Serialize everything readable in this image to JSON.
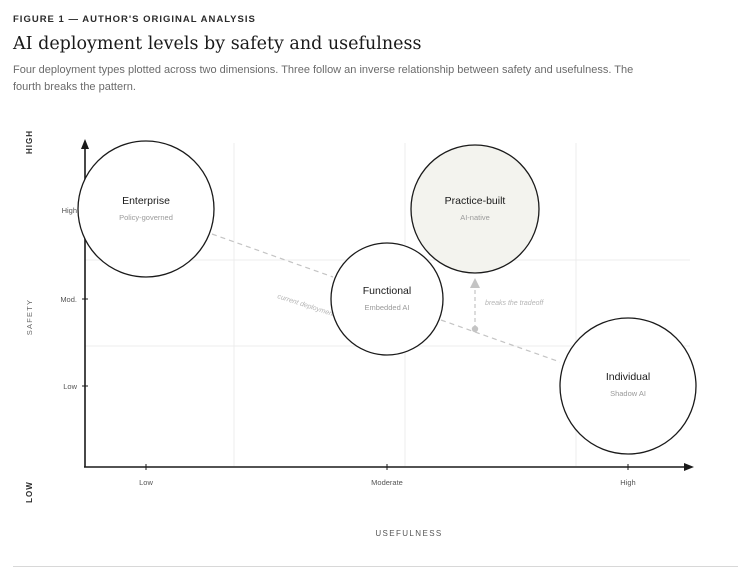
{
  "figure_label": "FIGURE 1 — AUTHOR'S ORIGINAL ANALYSIS",
  "title": "AI deployment levels by safety and usefulness",
  "subtitle": "Four deployment types plotted across two dimensions. Three follow an inverse relationship between safety and usefulness. The fourth breaks the pattern.",
  "axes": {
    "y_title": "SAFETY",
    "y_end_high": "HIGH",
    "y_end_low": "LOW",
    "x_title": "USEFULNESS",
    "y_ticks": [
      "High",
      "Mod.",
      "Low"
    ],
    "x_ticks": [
      "Low",
      "Moderate",
      "High"
    ]
  },
  "nodes": {
    "enterprise": {
      "label": "Enterprise",
      "sub": "Policy-governed"
    },
    "functional": {
      "label": "Functional",
      "sub": "Embedded AI"
    },
    "practice": {
      "label": "Practice-built",
      "sub": "AI-native"
    },
    "individual": {
      "label": "Individual",
      "sub": "Shadow AI"
    }
  },
  "annotations": {
    "trend": "current deployment",
    "breaks": "breaks the tradeoff"
  },
  "colors": {
    "stroke": "#1a1a1a",
    "practice_fill": "#f3f3ee",
    "dash": "#c4c4c4",
    "grid": "#ececec",
    "muted": "#9a9a9a"
  }
}
